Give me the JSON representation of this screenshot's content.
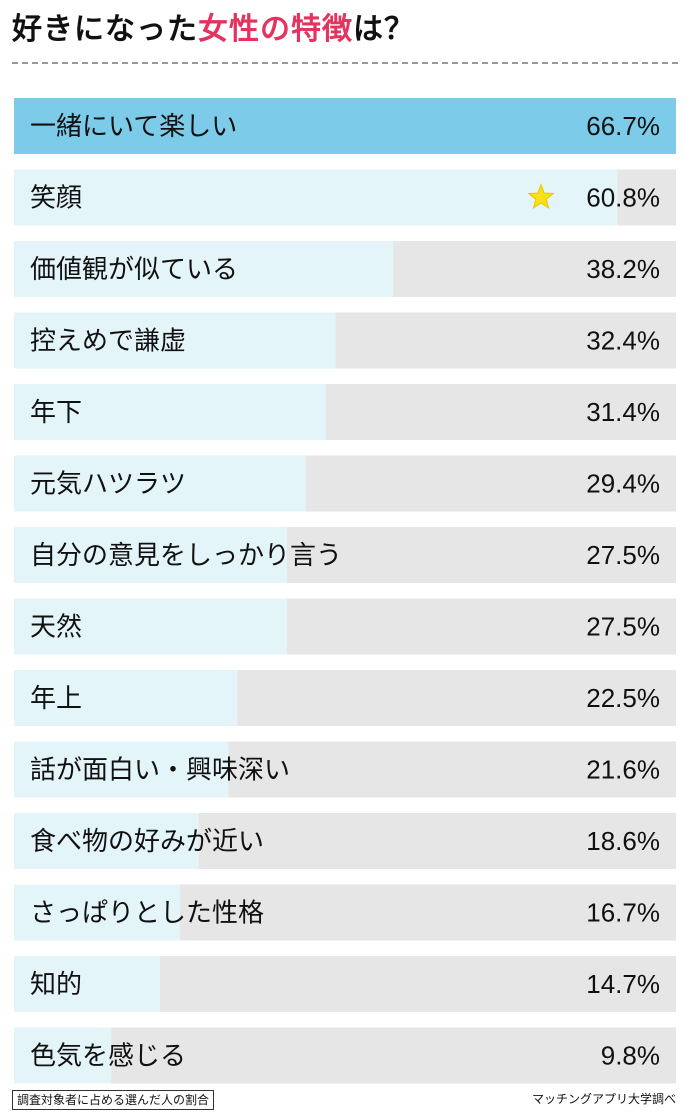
{
  "header": {
    "title_prefix": "好きになった",
    "title_accent": "女性の特徴",
    "title_suffix": "は？"
  },
  "colors": {
    "accent": "#e4335f",
    "bar_top": "#7ccbe8",
    "bar": "#e4f5fa",
    "track": "#e6e6e6"
  },
  "chart_data": {
    "type": "bar",
    "orientation": "horizontal",
    "categories": [
      "一緒にいて楽しい",
      "笑顔",
      "価値観が似ている",
      "控えめで謙虚",
      "年下",
      "元気ハツラツ",
      "自分の意見をしっかり言う",
      "天然",
      "年上",
      "話が面白い・興味深い",
      "食べ物の好みが近い",
      "さっぱりとした性格",
      "知的",
      "色気を感じる"
    ],
    "values": [
      66.7,
      60.8,
      38.2,
      32.4,
      31.4,
      29.4,
      27.5,
      27.5,
      22.5,
      21.6,
      18.6,
      16.7,
      14.7,
      9.8
    ],
    "value_labels": [
      "66.7%",
      "60.8%",
      "38.2%",
      "32.4%",
      "31.4%",
      "29.4%",
      "27.5%",
      "27.5%",
      "22.5%",
      "21.6%",
      "18.6%",
      "16.7%",
      "14.7%",
      "9.8%"
    ],
    "xlim": [
      0,
      66.7
    ],
    "highlight_index": 0,
    "star_index": 1,
    "star_icon": "star-icon"
  },
  "footer": {
    "note": "調査対象者に占める選んだ人の割合",
    "source": "マッチングアプリ大学調べ"
  }
}
